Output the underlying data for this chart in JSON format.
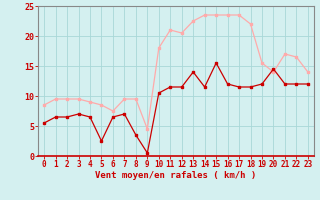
{
  "xlabel": "Vent moyen/en rafales ( km/h )",
  "x_values": [
    0,
    1,
    2,
    3,
    4,
    5,
    6,
    7,
    8,
    9,
    10,
    11,
    12,
    13,
    14,
    15,
    16,
    17,
    18,
    19,
    20,
    21,
    22,
    23
  ],
  "wind_avg": [
    5.5,
    6.5,
    6.5,
    7.0,
    6.5,
    2.5,
    6.5,
    7.0,
    3.5,
    0.5,
    10.5,
    11.5,
    11.5,
    14.0,
    11.5,
    15.5,
    12.0,
    11.5,
    11.5,
    12.0,
    14.5,
    12.0,
    12.0,
    12.0
  ],
  "wind_gust": [
    8.5,
    9.5,
    9.5,
    9.5,
    9.0,
    8.5,
    7.5,
    9.5,
    9.5,
    4.5,
    18.0,
    21.0,
    20.5,
    22.5,
    23.5,
    23.5,
    23.5,
    23.5,
    22.0,
    15.5,
    14.0,
    17.0,
    16.5,
    14.0
  ],
  "avg_color": "#cc0000",
  "gust_color": "#ffaaaa",
  "bg_color": "#d4f0f0",
  "grid_color": "#a8d8d8",
  "ylim": [
    0,
    25
  ],
  "yticks": [
    0,
    5,
    10,
    15,
    20,
    25
  ],
  "xlabel_color": "#cc0000",
  "tick_color": "#cc0000",
  "axis_line_color": "#888888",
  "bottom_line_color": "#cc0000",
  "marker_size": 2.0,
  "line_width": 0.9,
  "xlabel_fontsize": 6.5,
  "tick_fontsize": 5.5
}
